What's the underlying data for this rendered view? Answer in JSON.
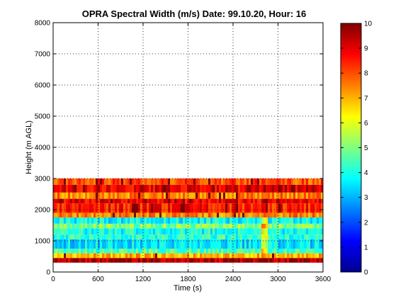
{
  "chart_data": {
    "type": "heatmap",
    "title": "OPRA Spectral Width (m/s)  Date: 99.10.20, Hour: 16",
    "xlabel": "Time (s)",
    "ylabel": "Height (m AGL)",
    "xlim": [
      0,
      3600
    ],
    "ylim": [
      0,
      8000
    ],
    "x_ticks": [
      0,
      600,
      1200,
      1800,
      2400,
      3000,
      3600
    ],
    "y_ticks": [
      0,
      1000,
      2000,
      3000,
      4000,
      5000,
      6000,
      7000,
      8000
    ],
    "colorbar": {
      "range": [
        0,
        10
      ],
      "ticks": [
        0,
        1,
        2,
        3,
        4,
        5,
        6,
        7,
        8,
        9,
        10
      ],
      "colormap": "jet"
    },
    "grid": "dotted",
    "data_extent_height": [
      300,
      3000
    ],
    "bands": [
      {
        "height": [
          300,
          450
        ],
        "value": 9.5
      },
      {
        "height": [
          450,
          600
        ],
        "value": 7.0
      },
      {
        "height": [
          600,
          750
        ],
        "value": 4.5
      },
      {
        "height": [
          750,
          1050
        ],
        "value": 3.5
      },
      {
        "height": [
          1050,
          1200
        ],
        "value": 4.2
      },
      {
        "height": [
          1200,
          1400
        ],
        "value": 4.0
      },
      {
        "height": [
          1400,
          1550
        ],
        "value": 5.0
      },
      {
        "height": [
          1550,
          1750
        ],
        "value": 3.8
      },
      {
        "height": [
          1750,
          1900
        ],
        "value": 7.5
      },
      {
        "height": [
          1900,
          2200
        ],
        "value": 8.5
      },
      {
        "height": [
          2200,
          2350
        ],
        "value": 9.0
      },
      {
        "height": [
          2350,
          2550
        ],
        "value": 7.5
      },
      {
        "height": [
          2550,
          2800
        ],
        "value": 9.0
      },
      {
        "height": [
          2800,
          3000
        ],
        "value": 8.0
      }
    ]
  }
}
